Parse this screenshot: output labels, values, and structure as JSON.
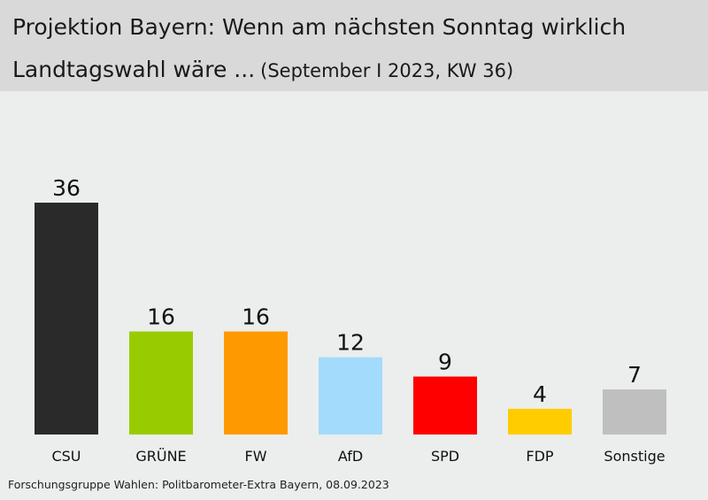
{
  "header": {
    "title_line1": "Projektion Bayern: Wenn am nächsten Sonntag wirklich",
    "title_line2": "Landtagswahl wäre ...",
    "subtitle": "(September I 2023, KW 36)"
  },
  "chart_data": {
    "type": "bar",
    "categories": [
      "CSU",
      "GRÜNE",
      "FW",
      "AfD",
      "SPD",
      "FDP",
      "Sonstige"
    ],
    "values": [
      36,
      16,
      16,
      12,
      9,
      4,
      7
    ],
    "colors": [
      "#2a2a2a",
      "#99cc00",
      "#ff9900",
      "#a3dbfc",
      "#ff0000",
      "#ffcc00",
      "#bfbfbf"
    ],
    "ylim": [
      0,
      36
    ],
    "grid": false,
    "legend": "none"
  },
  "footer": {
    "source": "Forschungsgruppe Wahlen: Politbarometer-Extra Bayern, 08.09.2023"
  }
}
